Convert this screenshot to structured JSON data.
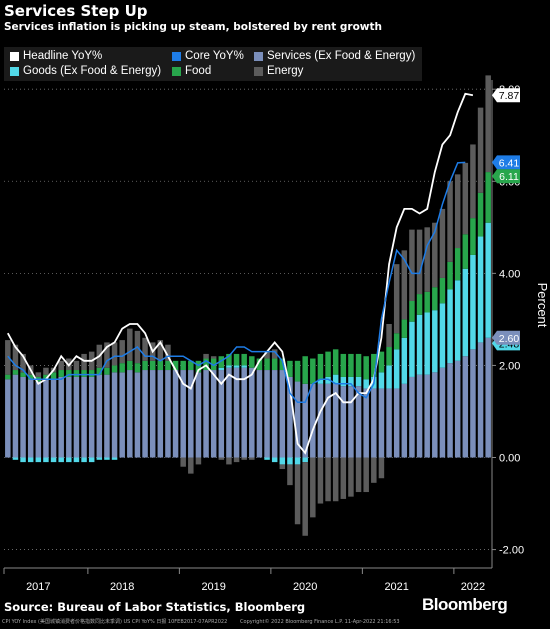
{
  "title": "Services Step Up",
  "subtitle": "Services inflation is picking up steam, bolstered by rent growth",
  "source": "Source: Bureau of Labor Statistics, Bloomberg",
  "brand": "Bloomberg",
  "footer_left": "CPI YOY Index (美国城镇消费者价格指数同比未季调) US CPI YoY%   日报  10FEB2017-07APR2022",
  "footer_right": "Copyright© 2022 Bloomberg Finance L.P.     11-Apr-2022 21:16:53",
  "chart_data": {
    "type": "bar",
    "ylabel": "Percent",
    "ylim": [
      -2.4,
      8.2
    ],
    "yticks": [
      "-2.00",
      "0.00",
      "2.00",
      "4.00",
      "6.00",
      "8.00"
    ],
    "ytick_values": [
      -2,
      0,
      2,
      4,
      6,
      8
    ],
    "xlabels": [
      "2017",
      "2018",
      "2019",
      "2020",
      "2021",
      "2022"
    ],
    "xlabel_index": [
      4,
      15,
      27,
      39,
      51,
      61
    ],
    "colors": {
      "headline": "#ffffff",
      "core": "#1e7ce6",
      "services": "#7b8fbb",
      "goods": "#52d8e8",
      "food": "#28a64c",
      "energy": "#5c5c5c"
    },
    "series": [
      {
        "name": "Services (Ex Food & Energy)",
        "key": "services",
        "values": [
          1.7,
          1.8,
          1.75,
          1.7,
          1.65,
          1.7,
          1.7,
          1.75,
          1.75,
          1.75,
          1.75,
          1.75,
          1.8,
          1.8,
          1.85,
          1.85,
          1.9,
          1.85,
          1.9,
          1.9,
          1.9,
          1.9,
          1.9,
          1.9,
          1.9,
          1.85,
          1.9,
          1.9,
          1.9,
          1.95,
          1.95,
          1.95,
          1.95,
          1.9,
          1.9,
          1.9,
          1.9,
          1.75,
          1.65,
          1.6,
          1.6,
          1.6,
          1.6,
          1.6,
          1.55,
          1.55,
          1.55,
          1.5,
          1.5,
          1.5,
          1.5,
          1.5,
          1.6,
          1.75,
          1.8,
          1.8,
          1.85,
          1.95,
          2.05,
          2.1,
          2.2,
          2.35,
          2.5,
          2.6
        ]
      },
      {
        "name": "Goods (Ex Food & Energy)",
        "key": "goods",
        "values": [
          0.0,
          -0.05,
          -0.1,
          -0.1,
          -0.1,
          -0.1,
          -0.1,
          -0.1,
          -0.1,
          -0.1,
          -0.1,
          -0.1,
          -0.05,
          -0.05,
          -0.05,
          0.0,
          0.0,
          0.0,
          0.0,
          0.0,
          0.0,
          0.0,
          0.0,
          0.0,
          0.0,
          0.0,
          0.0,
          0.0,
          0.05,
          0.05,
          0.05,
          0.05,
          0.0,
          0.0,
          -0.05,
          -0.1,
          -0.15,
          -0.15,
          -0.15,
          -0.1,
          0.0,
          0.1,
          0.15,
          0.2,
          0.2,
          0.2,
          0.2,
          0.2,
          0.25,
          0.35,
          0.5,
          0.85,
          1.0,
          1.2,
          1.3,
          1.35,
          1.35,
          1.4,
          1.6,
          1.75,
          1.9,
          2.05,
          2.3,
          2.5
        ]
      },
      {
        "name": "Food",
        "key": "food",
        "values": [
          0.1,
          0.1,
          0.1,
          0.1,
          0.1,
          0.1,
          0.15,
          0.15,
          0.15,
          0.15,
          0.15,
          0.15,
          0.15,
          0.15,
          0.15,
          0.2,
          0.2,
          0.2,
          0.2,
          0.2,
          0.2,
          0.2,
          0.2,
          0.2,
          0.2,
          0.25,
          0.25,
          0.25,
          0.25,
          0.25,
          0.25,
          0.25,
          0.25,
          0.25,
          0.25,
          0.25,
          0.25,
          0.35,
          0.45,
          0.6,
          0.55,
          0.55,
          0.55,
          0.55,
          0.5,
          0.5,
          0.5,
          0.5,
          0.5,
          0.45,
          0.4,
          0.35,
          0.4,
          0.45,
          0.45,
          0.45,
          0.5,
          0.55,
          0.6,
          0.7,
          0.75,
          0.8,
          0.95,
          1.1
        ]
      },
      {
        "name": "Energy",
        "key": "energy",
        "values": [
          0.75,
          0.55,
          0.4,
          0.2,
          0.1,
          0.15,
          0.1,
          0.2,
          0.25,
          0.2,
          0.35,
          0.4,
          0.5,
          0.55,
          0.5,
          0.5,
          0.7,
          0.7,
          0.5,
          0.4,
          0.45,
          0.35,
          0.0,
          -0.2,
          -0.35,
          -0.15,
          0.1,
          0.05,
          -0.05,
          -0.15,
          -0.1,
          -0.05,
          -0.05,
          0.0,
          0.15,
          0.2,
          -0.1,
          -0.45,
          -1.3,
          -1.6,
          -1.3,
          -1.0,
          -0.95,
          -0.95,
          -0.9,
          -0.85,
          -0.75,
          -0.75,
          -0.55,
          -0.45,
          0.5,
          1.5,
          1.5,
          1.55,
          1.4,
          1.4,
          1.4,
          1.5,
          1.75,
          1.6,
          1.55,
          1.6,
          1.85,
          2.1
        ]
      }
    ],
    "lines": [
      {
        "name": "Headline YoY%",
        "key": "headline",
        "values": [
          2.7,
          2.4,
          2.2,
          1.9,
          1.6,
          1.7,
          1.9,
          2.2,
          2.0,
          2.2,
          2.1,
          2.1,
          2.2,
          2.4,
          2.5,
          2.8,
          2.9,
          2.9,
          2.7,
          2.3,
          2.5,
          2.2,
          1.9,
          1.6,
          1.5,
          1.9,
          2.0,
          1.8,
          1.6,
          1.8,
          1.7,
          1.7,
          1.8,
          2.1,
          2.3,
          2.5,
          2.3,
          1.5,
          0.3,
          0.1,
          0.6,
          1.0,
          1.3,
          1.4,
          1.2,
          1.2,
          1.4,
          1.4,
          1.7,
          2.6,
          4.2,
          5.0,
          5.4,
          5.4,
          5.3,
          5.4,
          6.2,
          6.8,
          7.0,
          7.5,
          7.9,
          7.87
        ]
      },
      {
        "name": "Core YoY%",
        "key": "core",
        "values": [
          2.2,
          2.0,
          1.9,
          1.7,
          1.7,
          1.7,
          1.7,
          1.7,
          1.8,
          1.8,
          1.8,
          1.8,
          1.8,
          2.1,
          2.2,
          2.2,
          2.3,
          2.4,
          2.2,
          2.2,
          2.1,
          2.2,
          2.2,
          2.2,
          2.1,
          2.0,
          2.1,
          2.0,
          2.1,
          2.2,
          2.4,
          2.4,
          2.3,
          2.3,
          2.3,
          2.3,
          2.1,
          1.4,
          1.2,
          1.2,
          1.6,
          1.7,
          1.7,
          1.6,
          1.6,
          1.6,
          1.4,
          1.3,
          1.6,
          3.0,
          3.8,
          4.5,
          4.3,
          4.0,
          4.0,
          4.6,
          4.9,
          5.5,
          6.0,
          6.4,
          6.41
        ]
      }
    ],
    "value_labels": [
      {
        "text": "7.87",
        "key": "headline",
        "value": 7.87
      },
      {
        "text": "6.41",
        "key": "core",
        "value": 6.41
      },
      {
        "text": "6.11",
        "key": "food",
        "value": 6.11
      },
      {
        "text": "2.48",
        "key": "goods",
        "value": 2.48
      },
      {
        "text": "2.60",
        "key": "services",
        "value": 2.6
      }
    ]
  }
}
